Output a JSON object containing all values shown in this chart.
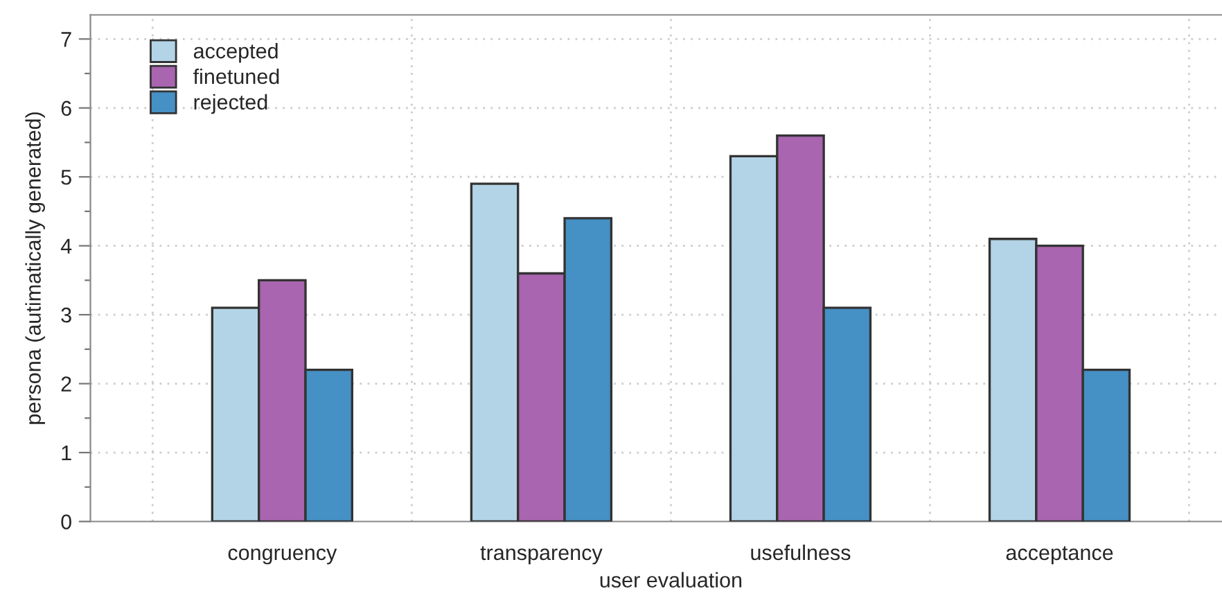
{
  "chart_data": {
    "type": "bar",
    "xlabel": "user evaluation",
    "ylabel": "persona (autimatically generated)",
    "categories": [
      "congruency",
      "transparency",
      "usefulness",
      "acceptance"
    ],
    "series": [
      {
        "name": "accepted",
        "color": "#b3d4e6",
        "values": [
          3.1,
          4.9,
          5.3,
          4.1
        ]
      },
      {
        "name": "finetuned",
        "color": "#a965b0",
        "values": [
          3.5,
          3.6,
          5.6,
          4.0
        ]
      },
      {
        "name": "rejected",
        "color": "#4590c4",
        "values": [
          2.2,
          4.4,
          3.1,
          2.2
        ]
      }
    ],
    "ylim": [
      0,
      7.35
    ],
    "yticks": [
      0,
      {
        "value": 0.5,
        "label": null
      },
      1,
      {
        "value": 1.5,
        "label": null
      },
      2,
      {
        "value": 2.5,
        "label": null
      },
      3,
      {
        "value": 3.5,
        "label": null
      },
      4,
      {
        "value": 4.5,
        "label": null
      },
      5,
      {
        "value": 5.5,
        "label": null
      },
      6,
      {
        "value": 6.5,
        "label": null
      },
      7
    ],
    "grid": true,
    "legend": "top left"
  }
}
